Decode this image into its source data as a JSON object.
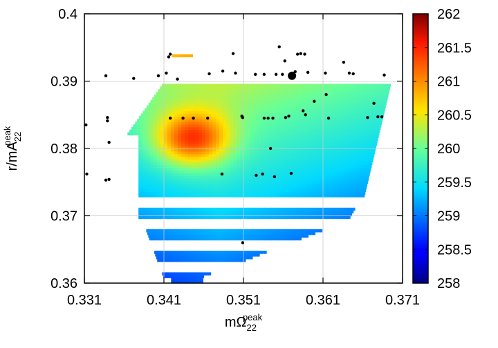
{
  "chart_data": {
    "type": "heatmap",
    "xlabel": {
      "base": "mΩ",
      "sup": "peak",
      "sub": "22"
    },
    "ylabel": {
      "base": "r/mA",
      "sup": "peak",
      "sub": "22"
    },
    "xlim": [
      0.331,
      0.371
    ],
    "ylim": [
      0.36,
      0.4
    ],
    "x_ticks": [
      0.331,
      0.341,
      0.351,
      0.361,
      0.371
    ],
    "x_tick_labels": [
      "0.331",
      "0.341",
      "0.351",
      "0.361",
      "0.371"
    ],
    "y_ticks": [
      0.36,
      0.37,
      0.38,
      0.39,
      0.4
    ],
    "y_tick_labels": [
      "0.36",
      "0.37",
      "0.38",
      "0.39",
      "0.4"
    ],
    "grid": true,
    "colorbar": {
      "range": [
        258,
        262
      ],
      "ticks": [
        258,
        258.5,
        259,
        259.5,
        260,
        260.5,
        261,
        261.5,
        262
      ],
      "tick_labels": [
        "258",
        "258.5",
        "259",
        "259.5",
        "260",
        "260.5",
        "261",
        "261.5",
        "262"
      ],
      "colormap": "jet"
    },
    "peak_point": {
      "x": 0.3571,
      "y": 0.3908
    },
    "points": [
      [
        0.3312,
        0.3835
      ],
      [
        0.3313,
        0.3762
      ],
      [
        0.3337,
        0.3908
      ],
      [
        0.3339,
        0.3846
      ],
      [
        0.3339,
        0.3841
      ],
      [
        0.3341,
        0.3809
      ],
      [
        0.3337,
        0.3753
      ],
      [
        0.3341,
        0.3754
      ],
      [
        0.3372,
        0.3904
      ],
      [
        0.3403,
        0.3908
      ],
      [
        0.3413,
        0.3912
      ],
      [
        0.3416,
        0.3936
      ],
      [
        0.3418,
        0.394
      ],
      [
        0.3418,
        0.3845
      ],
      [
        0.3427,
        0.3903
      ],
      [
        0.3434,
        0.3845
      ],
      [
        0.3447,
        0.3845
      ],
      [
        0.3465,
        0.3845
      ],
      [
        0.3467,
        0.3911
      ],
      [
        0.3484,
        0.3915
      ],
      [
        0.3483,
        0.3762
      ],
      [
        0.3497,
        0.3941
      ],
      [
        0.35,
        0.3912
      ],
      [
        0.3508,
        0.3848
      ],
      [
        0.3509,
        0.3846
      ],
      [
        0.3509,
        0.366
      ],
      [
        0.3525,
        0.391
      ],
      [
        0.3526,
        0.376
      ],
      [
        0.3534,
        0.3762
      ],
      [
        0.3536,
        0.391
      ],
      [
        0.3536,
        0.3845
      ],
      [
        0.3541,
        0.3845
      ],
      [
        0.3544,
        0.38
      ],
      [
        0.3547,
        0.3845
      ],
      [
        0.3549,
        0.3758
      ],
      [
        0.3551,
        0.391
      ],
      [
        0.3555,
        0.3951
      ],
      [
        0.3559,
        0.391
      ],
      [
        0.3562,
        0.393
      ],
      [
        0.3563,
        0.3846
      ],
      [
        0.3567,
        0.3848
      ],
      [
        0.357,
        0.3763
      ],
      [
        0.3575,
        0.3914
      ],
      [
        0.3578,
        0.394
      ],
      [
        0.3582,
        0.3941
      ],
      [
        0.3587,
        0.394
      ],
      [
        0.3585,
        0.3856
      ],
      [
        0.3588,
        0.385
      ],
      [
        0.3591,
        0.3913
      ],
      [
        0.3599,
        0.387
      ],
      [
        0.3613,
        0.3912
      ],
      [
        0.3614,
        0.388
      ],
      [
        0.3617,
        0.3845
      ],
      [
        0.3636,
        0.3928
      ],
      [
        0.3643,
        0.3912
      ],
      [
        0.3648,
        0.3911
      ],
      [
        0.3666,
        0.3846
      ],
      [
        0.3674,
        0.3867
      ],
      [
        0.3679,
        0.3847
      ],
      [
        0.3684,
        0.3847
      ],
      [
        0.3687,
        0.3909
      ]
    ]
  }
}
